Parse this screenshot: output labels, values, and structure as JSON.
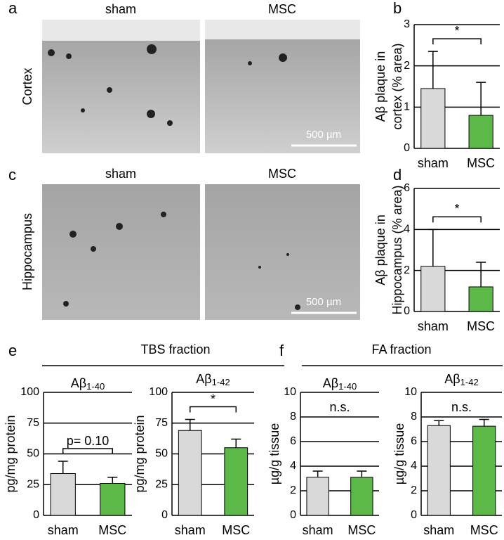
{
  "panel_labels": [
    "a",
    "b",
    "c",
    "d",
    "e",
    "f"
  ],
  "image_rows": [
    {
      "label": "Cortex",
      "titles": [
        "sham",
        "MSC"
      ],
      "scale_bar": "500 µm"
    },
    {
      "label": "Hippocampus",
      "titles": [
        "sham",
        "MSC"
      ],
      "scale_bar": "500 µm"
    }
  ],
  "fractions": [
    "TBS fraction",
    "FA fraction"
  ],
  "chart_data": [
    {
      "type": "bar",
      "ylabel": [
        "Aβ plaque in",
        "cortex (% area)"
      ],
      "categories": [
        "sham",
        "MSC"
      ],
      "values": [
        1.45,
        0.8
      ],
      "errors": [
        0.9,
        0.8
      ],
      "colors": [
        "#d9d9d9",
        "#5cb947"
      ],
      "ylim": [
        0,
        3
      ],
      "yticks": [
        0,
        1,
        2,
        3
      ],
      "annotation": "*",
      "bracket": true
    },
    {
      "type": "bar",
      "ylabel": [
        "Aβ plaque in",
        "Hippocampus (% area)"
      ],
      "categories": [
        "sham",
        "MSC"
      ],
      "values": [
        2.2,
        1.2
      ],
      "errors": [
        1.8,
        1.2
      ],
      "colors": [
        "#d9d9d9",
        "#5cb947"
      ],
      "ylim": [
        0,
        6
      ],
      "yticks": [
        0,
        2,
        4,
        6
      ],
      "annotation": "*",
      "bracket": true
    },
    {
      "type": "bar",
      "title": "Aβ",
      "title_sub": "1-40",
      "ylabel": [
        "pg/mg protein"
      ],
      "categories": [
        "sham",
        "MSC"
      ],
      "values": [
        34,
        26
      ],
      "errors": [
        10,
        5
      ],
      "colors": [
        "#d9d9d9",
        "#5cb947"
      ],
      "ylim": [
        0,
        100
      ],
      "yticks": [
        0,
        25,
        50,
        75,
        100
      ],
      "annotation": "p= 0.10",
      "bracket": true
    },
    {
      "type": "bar",
      "title": "Aβ",
      "title_sub": "1-42",
      "ylabel": [
        "pg/mg protein"
      ],
      "categories": [
        "sham",
        "MSC"
      ],
      "values": [
        69,
        55
      ],
      "errors": [
        9,
        7
      ],
      "colors": [
        "#d9d9d9",
        "#5cb947"
      ],
      "ylim": [
        0,
        100
      ],
      "yticks": [
        0,
        25,
        50,
        75,
        100
      ],
      "annotation": "*",
      "bracket": true
    },
    {
      "type": "bar",
      "title": "Aβ",
      "title_sub": "1-40",
      "ylabel": [
        "µg/g tissue"
      ],
      "categories": [
        "sham",
        "MSC"
      ],
      "values": [
        3.1,
        3.1
      ],
      "errors": [
        0.5,
        0.5
      ],
      "colors": [
        "#d9d9d9",
        "#5cb947"
      ],
      "ylim": [
        0,
        10
      ],
      "yticks": [
        0,
        2,
        4,
        6,
        8,
        10
      ],
      "annotation": "n.s.",
      "bracket": false
    },
    {
      "type": "bar",
      "title": "Aβ",
      "title_sub": "1-42",
      "ylabel": [
        "µg/g tissue"
      ],
      "categories": [
        "sham",
        "MSC"
      ],
      "values": [
        7.3,
        7.25
      ],
      "errors": [
        0.4,
        0.55
      ],
      "colors": [
        "#d9d9d9",
        "#5cb947"
      ],
      "ylim": [
        0,
        10
      ],
      "yticks": [
        0,
        2,
        4,
        6,
        8,
        10
      ],
      "annotation": "n.s.",
      "bracket": false
    }
  ]
}
